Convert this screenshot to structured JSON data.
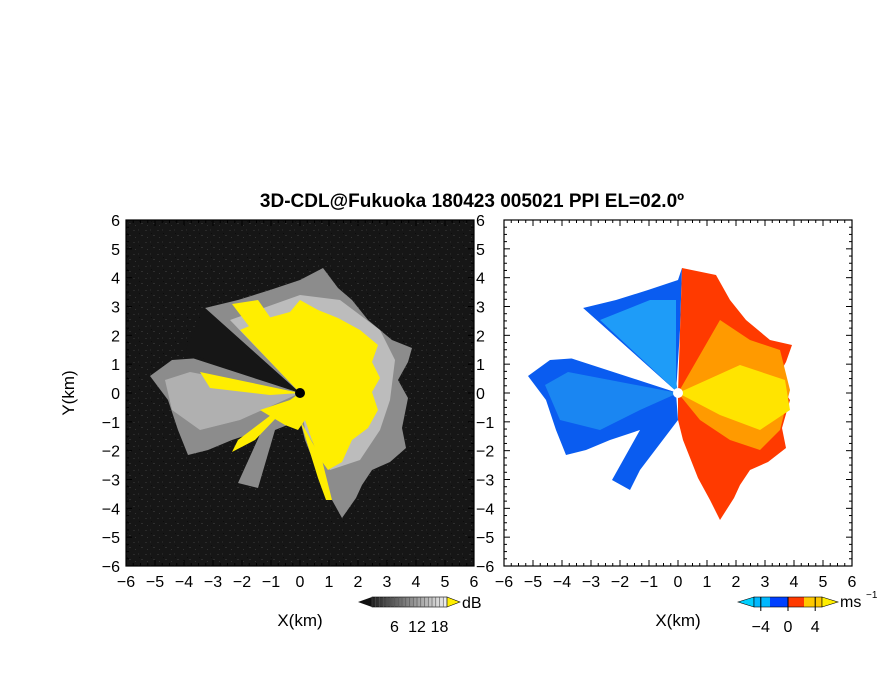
{
  "chart_data": [
    {
      "type": "heatmap",
      "title": "3D-CDL@Fukuoka 180423 005021 PPI EL=02.0º",
      "panel": "reflectivity",
      "xlabel": "X(km)",
      "ylabel": "Y(km)",
      "xlim": [
        -6,
        6
      ],
      "ylim": [
        -6,
        6
      ],
      "xticks": [
        "-6",
        "-5",
        "-4",
        "-3",
        "-2",
        "-1",
        "0",
        "1",
        "2",
        "3",
        "4",
        "5",
        "6"
      ],
      "yticks": [
        "-6",
        "-5",
        "-4",
        "-3",
        "-2",
        "-1",
        "0",
        "1",
        "2",
        "3",
        "4",
        "5",
        "6"
      ],
      "background_color": "#151515",
      "saturation_color": "#ffee00",
      "colorbar": {
        "unit": "dB",
        "ticks": [
          "6",
          "12",
          "18"
        ],
        "range": [
          0,
          20
        ],
        "colors": [
          "#202020",
          "#f0f0f0"
        ],
        "over_color": "#ffee00"
      }
    },
    {
      "type": "heatmap",
      "panel": "doppler_velocity",
      "xlabel": "X(km)",
      "xlim": [
        -6,
        6
      ],
      "ylim": [
        -6,
        6
      ],
      "xticks": [
        "-6",
        "-5",
        "-4",
        "-3",
        "-2",
        "-1",
        "0",
        "1",
        "2",
        "3",
        "4",
        "5",
        "6"
      ],
      "yticks": [
        "-6",
        "-5",
        "-4",
        "-3",
        "-2",
        "-1",
        "0",
        "1",
        "2",
        "3",
        "4",
        "5",
        "6"
      ],
      "colorbar": {
        "unit": "ms",
        "unit_exponent": "−1",
        "ticks": [
          "−4",
          "0",
          "4"
        ],
        "range": [
          -5,
          5
        ],
        "negative_colors": [
          "#00d0ff",
          "#0040ff"
        ],
        "positive_colors": [
          "#ff2a00",
          "#ffee00"
        ]
      }
    }
  ]
}
